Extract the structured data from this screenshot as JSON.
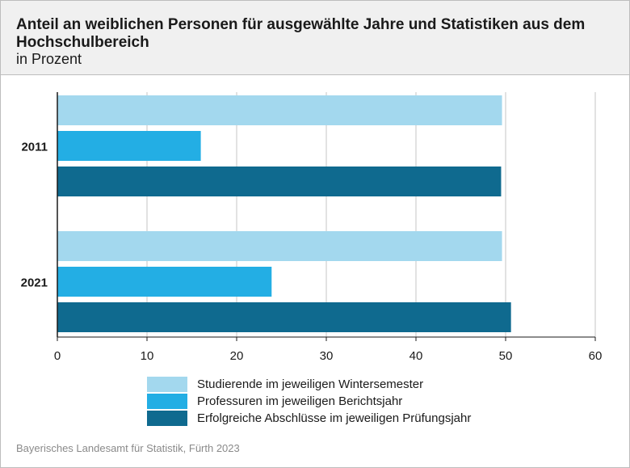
{
  "header": {
    "title": "Anteil an weiblichen Personen für ausgewählte Jahre und Statistiken aus dem Hochschulbereich",
    "subtitle": "in Prozent"
  },
  "footer": {
    "source": "Bayerisches Landesamt für Statistik, Fürth 2023"
  },
  "chart_data": {
    "type": "bar",
    "orientation": "horizontal",
    "title": "Anteil an weiblichen Personen für ausgewählte Jahre und Statistiken aus dem Hochschulbereich",
    "subtitle": "in Prozent",
    "categories": [
      "2011",
      "2021"
    ],
    "series": [
      {
        "name": "Studierende im jeweiligen Wintersemester",
        "color": "#a3d8ee",
        "values": [
          49.6,
          49.6
        ]
      },
      {
        "name": "Professuren im jeweiligen Berichtsjahr",
        "color": "#23aee4",
        "values": [
          16.0,
          23.9
        ]
      },
      {
        "name": "Erfolgreiche Abschlüsse im jeweiligen Prüfungsjahr",
        "color": "#0f6a8f",
        "values": [
          49.5,
          50.6
        ]
      }
    ],
    "xlim": [
      0,
      60
    ],
    "xticks": [
      0,
      10,
      20,
      30,
      40,
      50,
      60
    ],
    "grid": true,
    "legend_position": "bottom"
  }
}
